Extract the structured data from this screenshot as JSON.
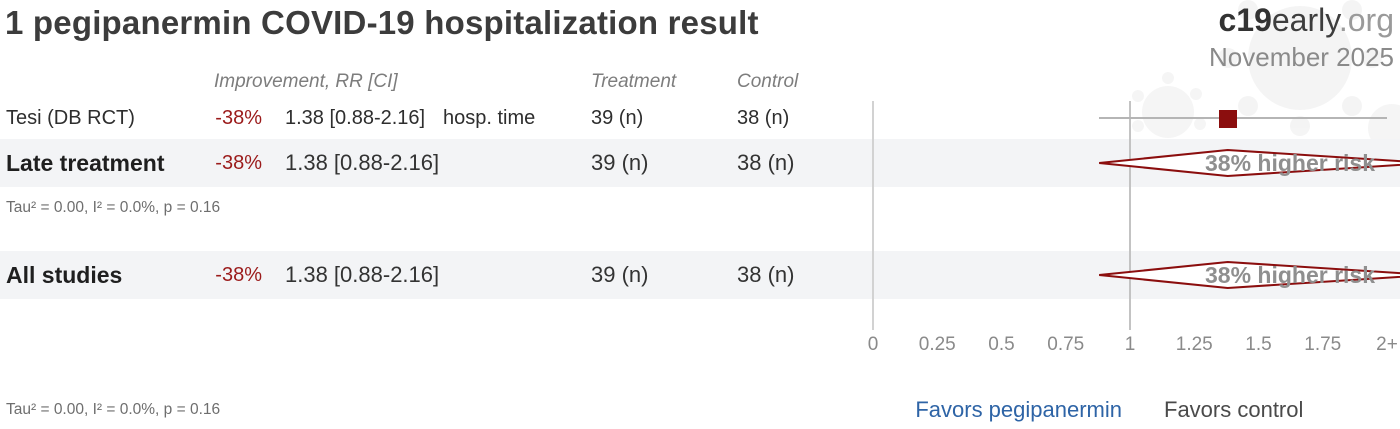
{
  "page": {
    "title": "1 pegipanermin COVID-19 hospitalization result",
    "logo": {
      "c19": "c19",
      "early": "early",
      "org": ".org",
      "date": "November 2025"
    }
  },
  "table": {
    "headers": {
      "improvement": "Improvement, RR [CI]",
      "treatment": "Treatment",
      "control": "Control"
    },
    "study_row": {
      "label": "Tesi (DB RCT)",
      "improvement": "-38%",
      "rr_ci": "1.38 [0.88-2.16]",
      "outcome": "hosp. time",
      "treatment_n": "39 (n)",
      "control_n": "38 (n)"
    },
    "late_row": {
      "label": "Late treatment",
      "improvement": "-38%",
      "rr_ci": "1.38 [0.88-2.16]",
      "treatment_n": "39 (n)",
      "control_n": "38 (n)",
      "effect": "38% higher risk",
      "note": "Tau² = 0.00, I² = 0.0%, p = 0.16"
    },
    "all_row": {
      "label": "All studies",
      "improvement": "-38%",
      "rr_ci": "1.38 [0.88-2.16]",
      "treatment_n": "39 (n)",
      "control_n": "38 (n)",
      "effect": "38% higher risk",
      "note": "Tau² = 0.00, I² = 0.0%, p = 0.16"
    }
  },
  "footer": {
    "favors_treatment": "Favors pegipanermin",
    "favors_control": "Favors control"
  },
  "colors": {
    "accent_red": "#8b0e0e",
    "improvement_red": "#9b1b1b",
    "favors_blue": "#2e64a6",
    "band_bg": "#f3f4f6",
    "line_gray": "#c3c3c3",
    "effect_gray": "#8f8f8f"
  },
  "chart_data": {
    "type": "forest",
    "title": "1 pegipanermin COVID-19 hospitalization result",
    "x_axis": {
      "tick_labels": [
        "0",
        "0.25",
        "0.5",
        "0.75",
        "1",
        "1.25",
        "1.5",
        "1.75",
        "2+"
      ],
      "tick_values": [
        0,
        0.25,
        0.5,
        0.75,
        1,
        1.25,
        1.5,
        1.75,
        2
      ],
      "reference_line": 1,
      "range": [
        0,
        2
      ],
      "clip_note": "values above 2 are clipped (2+)"
    },
    "rows": [
      {
        "label": "Tesi (DB RCT)",
        "kind": "study",
        "marker": "square",
        "rr": 1.38,
        "ci_low": 0.88,
        "ci_high": 2.16,
        "improvement_pct": -38,
        "outcome": "hosp. time",
        "treatment_n": 39,
        "control_n": 38
      },
      {
        "label": "Late treatment",
        "kind": "pooled",
        "marker": "diamond",
        "rr": 1.38,
        "ci_low": 0.88,
        "ci_high": 2.16,
        "improvement_pct": -38,
        "treatment_n": 39,
        "control_n": 38,
        "annotation": "38% higher risk",
        "heterogeneity": {
          "tau2": 0.0,
          "i2_pct": 0.0,
          "p": 0.16
        }
      },
      {
        "label": "All studies",
        "kind": "pooled",
        "marker": "diamond",
        "rr": 1.38,
        "ci_low": 0.88,
        "ci_high": 2.16,
        "improvement_pct": -38,
        "treatment_n": 39,
        "control_n": 38,
        "annotation": "38% higher risk",
        "heterogeneity": {
          "tau2": 0.0,
          "i2_pct": 0.0,
          "p": 0.16
        }
      }
    ],
    "favors_left": "Favors pegipanermin",
    "favors_right": "Favors control",
    "source": "c19early.org",
    "date": "November 2025"
  }
}
